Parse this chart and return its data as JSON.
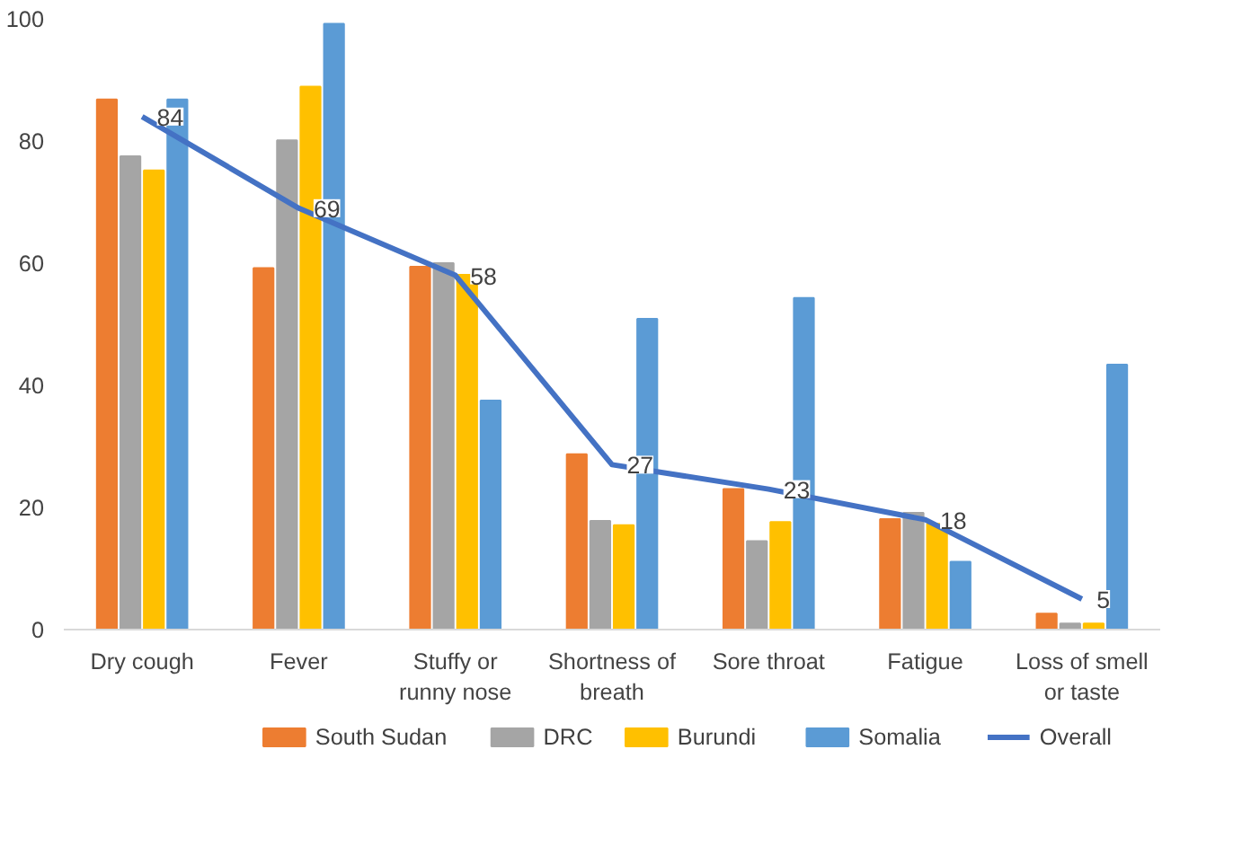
{
  "chart_data": {
    "type": "bar",
    "categories": [
      "Dry cough",
      "Fever",
      "Stuffy or runny nose",
      "Shortness of breath",
      "Sore throat",
      "Fatigue",
      "Loss of smell or taste"
    ],
    "series": [
      {
        "name": "South Sudan",
        "color": "#ed7d31",
        "values": [
          86.8,
          59.2,
          59.4,
          28.7,
          23,
          18.1,
          2.6
        ]
      },
      {
        "name": "DRC",
        "color": "#a5a5a5",
        "values": [
          77.5,
          80.1,
          60,
          17.8,
          14.5,
          19.1,
          1
        ]
      },
      {
        "name": "Burundi",
        "color": "#ffc000",
        "values": [
          75.2,
          88.9,
          58.1,
          17.1,
          17.6,
          17.3,
          1
        ]
      },
      {
        "name": "Somalia",
        "color": "#5b9bd5",
        "values": [
          86.8,
          99.2,
          37.5,
          50.9,
          54.3,
          11.1,
          43.4
        ]
      },
      {
        "name": "Overall",
        "color": "#4472c4",
        "type": "line",
        "values": [
          84,
          69,
          58,
          27,
          23,
          18,
          5
        ],
        "value_labels": [
          "84",
          "69",
          "58",
          "27",
          "23",
          "18",
          "5"
        ]
      }
    ],
    "ylim": [
      0,
      100
    ],
    "yticks": [
      0,
      20,
      40,
      60,
      80,
      100
    ],
    "grid": false,
    "legend": "bottom",
    "marker": "none",
    "line_style": "solid"
  }
}
